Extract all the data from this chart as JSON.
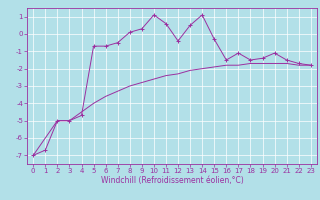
{
  "title": "",
  "xlabel": "Windchill (Refroidissement éolien,°C)",
  "ylabel": "",
  "x_values": [
    0,
    1,
    2,
    3,
    4,
    5,
    6,
    7,
    8,
    9,
    10,
    11,
    12,
    13,
    14,
    15,
    16,
    17,
    18,
    19,
    20,
    21,
    22,
    23
  ],
  "line1_y": [
    -7.0,
    -6.7,
    -5.0,
    -5.0,
    -4.7,
    -0.7,
    -0.7,
    -0.5,
    0.1,
    0.3,
    1.1,
    0.6,
    -0.4,
    0.5,
    1.1,
    -0.3,
    -1.5,
    -1.1,
    -1.5,
    -1.4,
    -1.1,
    -1.5,
    -1.7,
    -1.8
  ],
  "line2_y": [
    -7.0,
    -6.0,
    -5.0,
    -5.0,
    -4.5,
    -4.0,
    -3.6,
    -3.3,
    -3.0,
    -2.8,
    -2.6,
    -2.4,
    -2.3,
    -2.1,
    -2.0,
    -1.9,
    -1.8,
    -1.8,
    -1.7,
    -1.7,
    -1.7,
    -1.7,
    -1.8,
    -1.8
  ],
  "line_color": "#9b30a0",
  "bg_color": "#b2e0e8",
  "grid_color": "#ffffff",
  "ylim": [
    -7.5,
    1.5
  ],
  "xlim": [
    -0.5,
    23.5
  ],
  "yticks": [
    1,
    0,
    -1,
    -2,
    -3,
    -4,
    -5,
    -6,
    -7
  ],
  "xticks": [
    0,
    1,
    2,
    3,
    4,
    5,
    6,
    7,
    8,
    9,
    10,
    11,
    12,
    13,
    14,
    15,
    16,
    17,
    18,
    19,
    20,
    21,
    22,
    23
  ],
  "tick_fontsize": 5.0,
  "xlabel_fontsize": 5.5,
  "linewidth": 0.7,
  "marker_size": 2.5,
  "marker_ew": 0.7
}
